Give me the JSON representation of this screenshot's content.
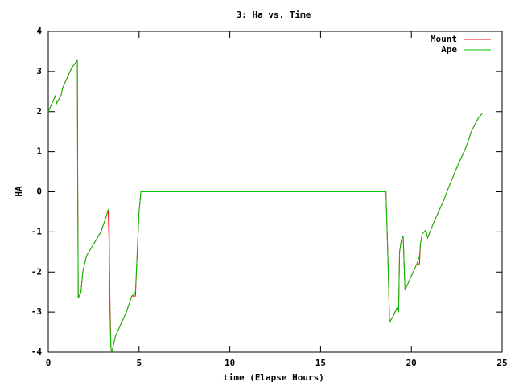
{
  "chart_data": {
    "type": "line",
    "title": "3: Ha vs. Time",
    "xlabel": "time (Elapse Hours)",
    "ylabel": "HA",
    "x": [
      0,
      0.3,
      0.4,
      0.45,
      0.7,
      0.8,
      1.0,
      1.3,
      1.55,
      1.6,
      1.62,
      1.65,
      1.8,
      1.9,
      2.1,
      2.5,
      2.9,
      3.2,
      3.3,
      3.35,
      3.4,
      3.45,
      3.5,
      3.6,
      3.7,
      4.0,
      4.3,
      4.6,
      4.8,
      4.9,
      5.0,
      5.1,
      18.6,
      18.7,
      18.8,
      19.0,
      19.2,
      19.3,
      19.35,
      19.45,
      19.55,
      19.65,
      19.8,
      20.0,
      20.3,
      20.45,
      20.5,
      20.6,
      20.8,
      20.9,
      21.2,
      21.6,
      21.8,
      22.0,
      22.5,
      23.0,
      23.3,
      23.7,
      23.9
    ],
    "series": [
      {
        "name": "Mount",
        "color": "#ff0000",
        "values": [
          2.0,
          2.3,
          2.4,
          2.2,
          2.4,
          2.6,
          2.8,
          3.1,
          3.25,
          3.3,
          0.3,
          -2.65,
          -2.5,
          -2.0,
          -1.6,
          -1.3,
          -1.0,
          -0.6,
          -0.45,
          -1.3,
          -2.8,
          -3.9,
          -4.0,
          -3.8,
          -3.6,
          -3.3,
          -3.0,
          -2.6,
          -2.6,
          -1.5,
          -0.5,
          0,
          0,
          -1.5,
          -3.25,
          -3.1,
          -2.9,
          -3.0,
          -1.5,
          -1.2,
          -1.1,
          -2.45,
          -2.3,
          -2.1,
          -1.8,
          -1.8,
          -1.3,
          -1.05,
          -0.95,
          -1.15,
          -0.8,
          -0.4,
          -0.2,
          0.05,
          0.6,
          1.1,
          1.5,
          1.85,
          1.95
        ]
      },
      {
        "name": "Ape",
        "color": "#00c000",
        "values": [
          2.0,
          2.3,
          2.4,
          2.2,
          2.4,
          2.6,
          2.8,
          3.1,
          3.25,
          3.3,
          0.3,
          -2.65,
          -2.5,
          -2.0,
          -1.6,
          -1.3,
          -1.0,
          -0.6,
          -0.45,
          -0.5,
          -3.1,
          -3.9,
          -4.0,
          -3.8,
          -3.6,
          -3.3,
          -3.0,
          -2.6,
          -2.5,
          -1.5,
          -0.5,
          0,
          0,
          -1.5,
          -3.25,
          -3.1,
          -2.9,
          -3.0,
          -1.5,
          -1.2,
          -1.1,
          -2.45,
          -2.3,
          -2.1,
          -1.8,
          -1.6,
          -1.3,
          -1.05,
          -0.95,
          -1.15,
          -0.8,
          -0.4,
          -0.2,
          0.05,
          0.6,
          1.1,
          1.5,
          1.85,
          1.95
        ]
      }
    ],
    "xlim": [
      0,
      25
    ],
    "xticks": [
      0,
      5,
      10,
      15,
      20,
      25
    ],
    "ylim": [
      -4,
      4
    ],
    "yticks": [
      -4,
      -3,
      -2,
      -1,
      0,
      1,
      2,
      3,
      4
    ],
    "legend": "top-right"
  }
}
